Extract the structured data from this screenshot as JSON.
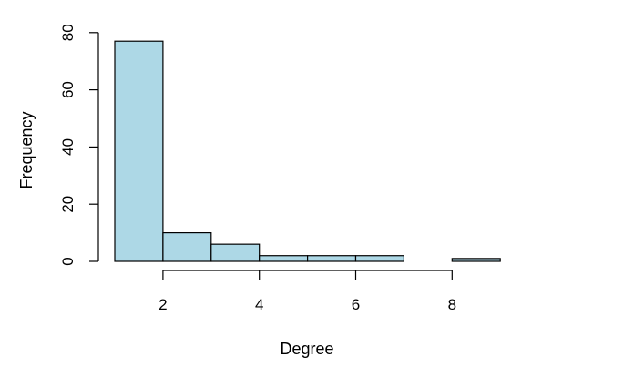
{
  "chart_data": {
    "type": "bar",
    "subtype": "histogram",
    "xlabel": "Degree",
    "ylabel": "Frequency",
    "bin_edges": [
      1,
      2,
      3,
      4,
      5,
      6,
      7,
      8,
      9
    ],
    "values": [
      77,
      10,
      6,
      2,
      2,
      2,
      0,
      1
    ],
    "xlim": [
      1,
      9
    ],
    "ylim": [
      0,
      80
    ],
    "x_ticks": [
      2,
      4,
      6,
      8
    ],
    "x_tick_labels": [
      "2",
      "4",
      "6",
      "8"
    ],
    "y_ticks": [
      0,
      20,
      40,
      60,
      80
    ],
    "y_tick_labels": [
      "0",
      "20",
      "40",
      "60",
      "80"
    ],
    "bar_color": "#add8e6",
    "grid": false,
    "legend": "none"
  }
}
